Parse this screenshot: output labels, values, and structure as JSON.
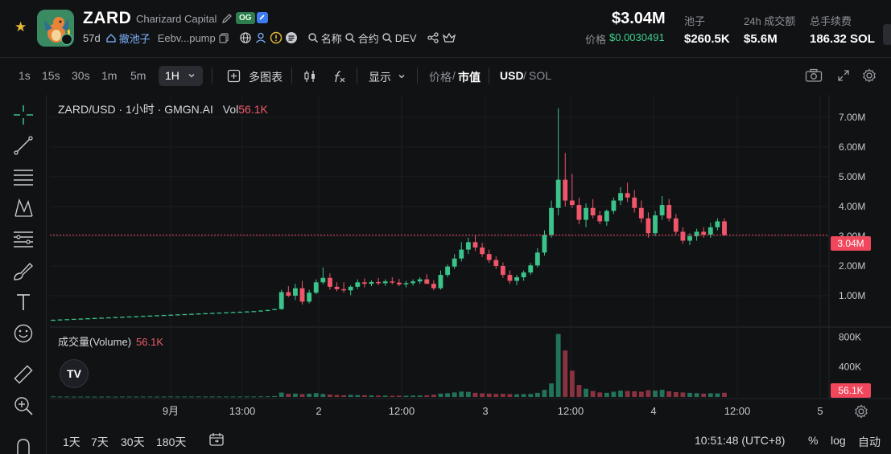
{
  "header": {
    "symbol": "ZARD",
    "name": "Charizard Capital",
    "og_badge": "OG",
    "age": "57d",
    "pool_link": "撤池子",
    "address": "Eebv...pump",
    "link_name": "名称",
    "link_contract": "合约",
    "link_dev": "DEV",
    "market_cap": "$3.04M",
    "price_label": "价格",
    "price_value": "$0.0030491",
    "stats": [
      {
        "label": "池子",
        "value": "$260.5K"
      },
      {
        "label": "24h 成交额",
        "value": "$5.6M"
      },
      {
        "label": "总手续费",
        "value": "186.32 SOL"
      }
    ],
    "icons": [
      "star-icon",
      "pencil-icon",
      "verify-icon",
      "copy-icon",
      "globe-icon",
      "user-icon",
      "warning-icon",
      "list-icon",
      "search-icon",
      "share-icon",
      "crown-icon"
    ]
  },
  "toolbar": {
    "intervals": [
      "1s",
      "15s",
      "30s",
      "1m",
      "5m"
    ],
    "active_interval": "1H",
    "multi_chart": "多图表",
    "display": "显示",
    "price_label": "价格",
    "mcap_label": "市值",
    "usd": "USD",
    "sol": "SOL"
  },
  "chart": {
    "legend_title": "ZARD/USD · 1小时 · GMGN.AI",
    "vol_label": "Vol",
    "vol_value": "56.1K",
    "volume_label": "成交量(Volume)",
    "volume_value": "56.1K",
    "last_price_tag": "3.04M",
    "last_volume_tag": "56.1K",
    "tv_logo": "TV"
  },
  "chart_data": {
    "type": "candlestick",
    "title": "ZARD/USD · 1小时 · GMGN.AI",
    "y_ticks": [
      "1.00M",
      "2.00M",
      "3.00M",
      "4.00M",
      "5.00M",
      "6.00M",
      "7.00M"
    ],
    "y_values": [
      1000000,
      2000000,
      3000000,
      4000000,
      5000000,
      6000000,
      7000000
    ],
    "volume_ticks": [
      "400K",
      "800K"
    ],
    "x_ticks": [
      "9月",
      "13:00",
      "2",
      "12:00",
      "3",
      "12:00",
      "4",
      "12:00",
      "5"
    ],
    "ylim": [
      0,
      7700000
    ],
    "volume_ylim": [
      0,
      900000
    ],
    "last_value": 3040000,
    "candles": [
      {
        "o": 0.18,
        "h": 0.2,
        "l": 0.16,
        "c": 0.19,
        "v": 8
      },
      {
        "o": 0.19,
        "h": 0.21,
        "l": 0.17,
        "c": 0.2,
        "v": 6
      },
      {
        "o": 0.2,
        "h": 0.22,
        "l": 0.18,
        "c": 0.21,
        "v": 6
      },
      {
        "o": 0.21,
        "h": 0.23,
        "l": 0.19,
        "c": 0.22,
        "v": 5
      },
      {
        "o": 0.22,
        "h": 0.24,
        "l": 0.2,
        "c": 0.23,
        "v": 5
      },
      {
        "o": 0.23,
        "h": 0.25,
        "l": 0.21,
        "c": 0.24,
        "v": 6
      },
      {
        "o": 0.24,
        "h": 0.26,
        "l": 0.22,
        "c": 0.25,
        "v": 5
      },
      {
        "o": 0.25,
        "h": 0.27,
        "l": 0.23,
        "c": 0.26,
        "v": 5
      },
      {
        "o": 0.26,
        "h": 0.28,
        "l": 0.24,
        "c": 0.27,
        "v": 6
      },
      {
        "o": 0.27,
        "h": 0.29,
        "l": 0.25,
        "c": 0.28,
        "v": 5
      },
      {
        "o": 0.28,
        "h": 0.3,
        "l": 0.26,
        "c": 0.29,
        "v": 6
      },
      {
        "o": 0.29,
        "h": 0.31,
        "l": 0.27,
        "c": 0.3,
        "v": 6
      },
      {
        "o": 0.3,
        "h": 0.32,
        "l": 0.28,
        "c": 0.31,
        "v": 5
      },
      {
        "o": 0.31,
        "h": 0.33,
        "l": 0.29,
        "c": 0.32,
        "v": 6
      },
      {
        "o": 0.32,
        "h": 0.34,
        "l": 0.3,
        "c": 0.33,
        "v": 6
      },
      {
        "o": 0.33,
        "h": 0.35,
        "l": 0.31,
        "c": 0.34,
        "v": 5
      },
      {
        "o": 0.34,
        "h": 0.36,
        "l": 0.32,
        "c": 0.35,
        "v": 6
      },
      {
        "o": 0.35,
        "h": 0.37,
        "l": 0.33,
        "c": 0.36,
        "v": 7
      },
      {
        "o": 0.36,
        "h": 0.38,
        "l": 0.34,
        "c": 0.37,
        "v": 6
      },
      {
        "o": 0.37,
        "h": 0.39,
        "l": 0.35,
        "c": 0.38,
        "v": 6
      },
      {
        "o": 0.38,
        "h": 0.4,
        "l": 0.36,
        "c": 0.39,
        "v": 6
      },
      {
        "o": 0.39,
        "h": 0.41,
        "l": 0.37,
        "c": 0.4,
        "v": 7
      },
      {
        "o": 0.4,
        "h": 0.42,
        "l": 0.38,
        "c": 0.41,
        "v": 6
      },
      {
        "o": 0.41,
        "h": 0.43,
        "l": 0.39,
        "c": 0.42,
        "v": 7
      },
      {
        "o": 0.42,
        "h": 0.44,
        "l": 0.4,
        "c": 0.43,
        "v": 6
      },
      {
        "o": 0.43,
        "h": 0.45,
        "l": 0.41,
        "c": 0.44,
        "v": 6
      },
      {
        "o": 0.44,
        "h": 0.46,
        "l": 0.42,
        "c": 0.45,
        "v": 7
      },
      {
        "o": 0.45,
        "h": 0.47,
        "l": 0.43,
        "c": 0.46,
        "v": 6
      },
      {
        "o": 0.46,
        "h": 0.48,
        "l": 0.44,
        "c": 0.47,
        "v": 7
      },
      {
        "o": 0.47,
        "h": 0.49,
        "l": 0.45,
        "c": 0.48,
        "v": 7
      },
      {
        "o": 0.48,
        "h": 0.51,
        "l": 0.46,
        "c": 0.5,
        "v": 8
      },
      {
        "o": 0.5,
        "h": 0.53,
        "l": 0.48,
        "c": 0.52,
        "v": 9
      },
      {
        "o": 0.52,
        "h": 0.56,
        "l": 0.51,
        "c": 0.55,
        "v": 12
      },
      {
        "o": 0.55,
        "h": 1.2,
        "l": 0.52,
        "c": 1.12,
        "v": 58
      },
      {
        "o": 1.12,
        "h": 1.32,
        "l": 0.95,
        "c": 1.0,
        "v": 42
      },
      {
        "o": 1.0,
        "h": 1.4,
        "l": 0.85,
        "c": 1.25,
        "v": 45
      },
      {
        "o": 1.25,
        "h": 1.5,
        "l": 0.7,
        "c": 0.8,
        "v": 38
      },
      {
        "o": 0.8,
        "h": 1.2,
        "l": 0.74,
        "c": 1.1,
        "v": 44
      },
      {
        "o": 1.1,
        "h": 1.55,
        "l": 1.05,
        "c": 1.45,
        "v": 52
      },
      {
        "o": 1.45,
        "h": 1.95,
        "l": 1.38,
        "c": 1.6,
        "v": 40
      },
      {
        "o": 1.6,
        "h": 1.75,
        "l": 1.2,
        "c": 1.3,
        "v": 32
      },
      {
        "o": 1.3,
        "h": 1.45,
        "l": 1.15,
        "c": 1.22,
        "v": 26
      },
      {
        "o": 1.22,
        "h": 1.45,
        "l": 1.1,
        "c": 1.18,
        "v": 22
      },
      {
        "o": 1.18,
        "h": 1.35,
        "l": 1.02,
        "c": 1.3,
        "v": 28
      },
      {
        "o": 1.3,
        "h": 1.55,
        "l": 1.22,
        "c": 1.45,
        "v": 25
      },
      {
        "o": 1.45,
        "h": 1.58,
        "l": 1.28,
        "c": 1.4,
        "v": 22
      },
      {
        "o": 1.4,
        "h": 1.52,
        "l": 1.32,
        "c": 1.46,
        "v": 20
      },
      {
        "o": 1.46,
        "h": 1.6,
        "l": 1.35,
        "c": 1.42,
        "v": 18
      },
      {
        "o": 1.42,
        "h": 1.55,
        "l": 1.33,
        "c": 1.48,
        "v": 18
      },
      {
        "o": 1.48,
        "h": 1.62,
        "l": 1.38,
        "c": 1.44,
        "v": 16
      },
      {
        "o": 1.44,
        "h": 1.56,
        "l": 1.32,
        "c": 1.38,
        "v": 17
      },
      {
        "o": 1.38,
        "h": 1.5,
        "l": 1.28,
        "c": 1.42,
        "v": 16
      },
      {
        "o": 1.42,
        "h": 1.55,
        "l": 1.34,
        "c": 1.48,
        "v": 18
      },
      {
        "o": 1.48,
        "h": 1.62,
        "l": 1.4,
        "c": 1.55,
        "v": 20
      },
      {
        "o": 1.55,
        "h": 1.72,
        "l": 1.48,
        "c": 1.4,
        "v": 22
      },
      {
        "o": 1.4,
        "h": 1.52,
        "l": 1.18,
        "c": 1.25,
        "v": 30
      },
      {
        "o": 1.25,
        "h": 1.85,
        "l": 1.2,
        "c": 1.7,
        "v": 45
      },
      {
        "o": 1.7,
        "h": 2.05,
        "l": 1.62,
        "c": 1.98,
        "v": 50
      },
      {
        "o": 1.98,
        "h": 2.4,
        "l": 1.9,
        "c": 2.25,
        "v": 60
      },
      {
        "o": 2.25,
        "h": 2.8,
        "l": 2.15,
        "c": 2.55,
        "v": 72
      },
      {
        "o": 2.55,
        "h": 2.95,
        "l": 2.4,
        "c": 2.8,
        "v": 68
      },
      {
        "o": 2.8,
        "h": 3.05,
        "l": 2.5,
        "c": 2.62,
        "v": 55
      },
      {
        "o": 2.62,
        "h": 2.78,
        "l": 2.3,
        "c": 2.4,
        "v": 48
      },
      {
        "o": 2.4,
        "h": 2.55,
        "l": 2.1,
        "c": 2.2,
        "v": 45
      },
      {
        "o": 2.2,
        "h": 2.32,
        "l": 1.9,
        "c": 2.0,
        "v": 40
      },
      {
        "o": 2.0,
        "h": 2.12,
        "l": 1.6,
        "c": 1.7,
        "v": 42
      },
      {
        "o": 1.7,
        "h": 1.85,
        "l": 1.4,
        "c": 1.5,
        "v": 38
      },
      {
        "o": 1.5,
        "h": 1.7,
        "l": 1.35,
        "c": 1.62,
        "v": 36
      },
      {
        "o": 1.62,
        "h": 1.85,
        "l": 1.5,
        "c": 1.78,
        "v": 38
      },
      {
        "o": 1.78,
        "h": 2.1,
        "l": 1.7,
        "c": 2.02,
        "v": 40
      },
      {
        "o": 2.02,
        "h": 2.6,
        "l": 1.95,
        "c": 2.45,
        "v": 55
      },
      {
        "o": 2.45,
        "h": 3.2,
        "l": 2.35,
        "c": 3.05,
        "v": 95
      },
      {
        "o": 3.05,
        "h": 4.2,
        "l": 2.95,
        "c": 3.95,
        "v": 180
      },
      {
        "o": 3.95,
        "h": 7.3,
        "l": 3.7,
        "c": 4.9,
        "v": 840
      },
      {
        "o": 4.9,
        "h": 5.8,
        "l": 4.0,
        "c": 4.2,
        "v": 620
      },
      {
        "o": 4.2,
        "h": 5.1,
        "l": 3.95,
        "c": 4.05,
        "v": 350
      },
      {
        "o": 4.05,
        "h": 4.3,
        "l": 3.4,
        "c": 3.55,
        "v": 160
      },
      {
        "o": 3.55,
        "h": 4.1,
        "l": 3.3,
        "c": 3.95,
        "v": 110
      },
      {
        "o": 3.95,
        "h": 4.25,
        "l": 3.6,
        "c": 3.7,
        "v": 80
      },
      {
        "o": 3.7,
        "h": 3.85,
        "l": 3.4,
        "c": 3.5,
        "v": 60
      },
      {
        "o": 3.5,
        "h": 3.9,
        "l": 3.35,
        "c": 3.85,
        "v": 55
      },
      {
        "o": 3.85,
        "h": 4.3,
        "l": 3.75,
        "c": 4.2,
        "v": 70
      },
      {
        "o": 4.2,
        "h": 4.65,
        "l": 4.05,
        "c": 4.45,
        "v": 85
      },
      {
        "o": 4.45,
        "h": 4.8,
        "l": 4.15,
        "c": 4.3,
        "v": 80
      },
      {
        "o": 4.3,
        "h": 4.55,
        "l": 3.8,
        "c": 3.95,
        "v": 75
      },
      {
        "o": 3.95,
        "h": 4.2,
        "l": 3.45,
        "c": 3.6,
        "v": 70
      },
      {
        "o": 3.6,
        "h": 3.8,
        "l": 2.95,
        "c": 3.1,
        "v": 90
      },
      {
        "o": 3.1,
        "h": 3.85,
        "l": 3.0,
        "c": 3.7,
        "v": 85
      },
      {
        "o": 3.7,
        "h": 4.35,
        "l": 3.55,
        "c": 4.05,
        "v": 95
      },
      {
        "o": 4.05,
        "h": 4.25,
        "l": 3.5,
        "c": 3.6,
        "v": 75
      },
      {
        "o": 3.6,
        "h": 3.75,
        "l": 3.05,
        "c": 3.15,
        "v": 65
      },
      {
        "o": 3.15,
        "h": 3.3,
        "l": 2.75,
        "c": 2.85,
        "v": 60
      },
      {
        "o": 2.85,
        "h": 3.1,
        "l": 2.7,
        "c": 3.0,
        "v": 55
      },
      {
        "o": 3.0,
        "h": 3.25,
        "l": 2.85,
        "c": 3.15,
        "v": 50
      },
      {
        "o": 3.15,
        "h": 3.3,
        "l": 2.95,
        "c": 3.05,
        "v": 45
      },
      {
        "o": 3.05,
        "h": 3.45,
        "l": 2.95,
        "c": 3.3,
        "v": 50
      },
      {
        "o": 3.3,
        "h": 3.6,
        "l": 3.2,
        "c": 3.5,
        "v": 48
      },
      {
        "o": 3.5,
        "h": 3.6,
        "l": 3.0,
        "c": 3.04,
        "v": 56
      }
    ]
  },
  "bottom": {
    "ranges": [
      "1天",
      "7天",
      "30天",
      "180天"
    ],
    "time": "10:51:48 (UTC+8)",
    "percent": "%",
    "log": "log",
    "auto": "自动"
  },
  "colors": {
    "up": "#3ac38a",
    "down": "#f0566a",
    "background": "#111214",
    "grid": "#1c1e22"
  }
}
